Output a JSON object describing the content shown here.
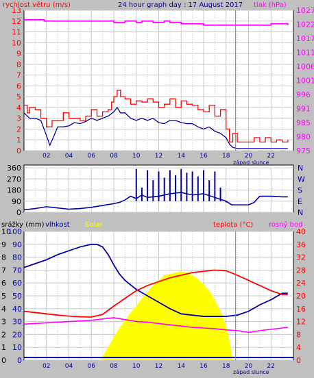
{
  "chart_data": [
    {
      "type": "line",
      "title": "24 hour graph day : 17 August 2017",
      "left_axis_label": "rychlost větru (m/s)",
      "right_axis_label": "tlak (hPa)",
      "left_axis_color": "#ff0000",
      "right_axis_color": "#ff00ff",
      "y_left_ticks": [
        "0",
        "1",
        "2",
        "3",
        "4",
        "5",
        "6",
        "7",
        "8",
        "9",
        "10",
        "11",
        "12",
        "13"
      ],
      "y_left_range": [
        0,
        13
      ],
      "y_right_ticks": [
        "975",
        "980",
        "985",
        "991",
        "996",
        "1001",
        "1006",
        "1011",
        "1017",
        "1022",
        "1027"
      ],
      "y_right_range": [
        975,
        1027
      ],
      "x_ticks": [
        "02",
        "04",
        "06",
        "08",
        "10",
        "12",
        "14",
        "16",
        "18",
        "20",
        "22"
      ],
      "x_range": [
        0,
        24
      ],
      "sunset_label": "západ slunce",
      "sunset_hour": 18.85,
      "grid": true,
      "series": [
        {
          "name": "gust",
          "color": "#ff0000",
          "x": [
            0,
            0.3,
            0.5,
            1,
            1.5,
            2,
            2.5,
            3,
            3.5,
            4,
            4.5,
            5,
            5.5,
            6,
            6.5,
            7,
            7.5,
            7.8,
            8,
            8.3,
            8.6,
            9,
            9.5,
            10,
            10.5,
            11,
            11.5,
            12,
            12.5,
            13,
            13.5,
            14,
            14.5,
            15,
            15.5,
            16,
            16.5,
            17,
            17.5,
            18,
            18.3,
            18.6,
            19,
            19.5,
            20,
            20.5,
            21,
            21.5,
            22,
            22.5,
            23,
            23.5
          ],
          "values": [
            4.2,
            3.5,
            4.0,
            3.8,
            3.0,
            2.2,
            2.8,
            2.8,
            3.5,
            3.0,
            3.0,
            2.8,
            3.2,
            3.8,
            3.2,
            3.6,
            3.8,
            4.5,
            5.0,
            5.6,
            5.0,
            4.8,
            4.3,
            4.6,
            4.5,
            4.8,
            4.5,
            4.0,
            4.3,
            4.8,
            4.0,
            4.6,
            4.3,
            4.2,
            3.8,
            3.6,
            4.2,
            3.2,
            3.8,
            2.0,
            0.8,
            1.6,
            0.8,
            0.8,
            0.8,
            1.2,
            0.8,
            1.2,
            0.8,
            1.0,
            0.8,
            1.0
          ]
        },
        {
          "name": "wind",
          "color": "#0000a0",
          "x": [
            0,
            0.5,
            1,
            1.5,
            2,
            2.3,
            2.6,
            3,
            3.5,
            4,
            4.5,
            5,
            5.5,
            6,
            6.5,
            7,
            7.5,
            8,
            8.3,
            8.6,
            9,
            9.5,
            10,
            10.5,
            11,
            11.5,
            12,
            12.5,
            13,
            13.5,
            14,
            14.5,
            15,
            15.5,
            16,
            16.5,
            17,
            17.5,
            18,
            18.3,
            18.6,
            19,
            20,
            21,
            22,
            23,
            23.5
          ],
          "values": [
            3.5,
            3.0,
            3.0,
            2.8,
            1.4,
            0.5,
            1.2,
            2.2,
            2.2,
            2.3,
            2.6,
            2.5,
            2.7,
            3.0,
            2.8,
            3.0,
            3.2,
            3.6,
            4.0,
            3.5,
            3.5,
            3.0,
            2.8,
            3.0,
            2.8,
            3.0,
            2.6,
            2.5,
            2.8,
            2.8,
            2.6,
            2.5,
            2.5,
            2.2,
            2.0,
            2.2,
            1.8,
            1.6,
            1.2,
            0.6,
            0.3,
            0.2,
            0.2,
            0.2,
            0.2,
            0.2,
            0.2
          ]
        },
        {
          "name": "pressure",
          "color": "#ff00ff",
          "x": [
            0,
            1,
            1.8,
            5,
            7,
            8,
            9,
            9.5,
            10,
            10.5,
            11,
            11.5,
            12,
            12.5,
            13,
            13.5,
            14,
            15,
            16,
            18,
            20,
            21,
            22,
            23,
            23.5
          ],
          "values": [
            1023.5,
            1023.5,
            1023,
            1023,
            1023,
            1022.5,
            1023,
            1023,
            1022.5,
            1023,
            1023,
            1022.5,
            1022.5,
            1023,
            1022.5,
            1022.5,
            1022,
            1022,
            1021.5,
            1021.5,
            1021.5,
            1021.5,
            1022,
            1022,
            1021.5
          ]
        }
      ]
    },
    {
      "type": "line",
      "y_right_ticks": [
        "N",
        "W",
        "S",
        "E",
        "N"
      ],
      "y_left_ticks": [
        "0",
        "90",
        "180",
        "270",
        "360"
      ],
      "y_left_range": [
        0,
        360
      ],
      "x_ticks": [
        "02",
        "04",
        "06",
        "08",
        "10",
        "12",
        "14",
        "16",
        "18",
        "20",
        "22"
      ],
      "x_range": [
        0,
        24
      ],
      "grid": true,
      "series": [
        {
          "name": "direction",
          "color": "#0000a0",
          "x": [
            0,
            1,
            2,
            3,
            4,
            5,
            6,
            7,
            8,
            8.5,
            9,
            9.5,
            10,
            10.5,
            11,
            12,
            13,
            14,
            15,
            16,
            17,
            18,
            18.5,
            19,
            20,
            20.5,
            21,
            22,
            23,
            23.5
          ],
          "values": [
            20,
            30,
            45,
            35,
            25,
            30,
            40,
            55,
            70,
            80,
            100,
            130,
            110,
            140,
            120,
            130,
            150,
            160,
            140,
            150,
            120,
            90,
            60,
            60,
            60,
            80,
            130,
            130,
            125,
            125
          ]
        },
        {
          "name": "direction-spikes",
          "color": "#0000a0",
          "x": [
            10,
            10.5,
            11,
            11.5,
            12,
            12.5,
            13,
            13.5,
            14,
            14.5,
            15,
            15.5,
            16,
            16.5,
            17,
            17.5,
            18
          ],
          "values": [
            350,
            200,
            340,
            260,
            330,
            280,
            340,
            300,
            350,
            320,
            330,
            290,
            340,
            260,
            330,
            200,
            80
          ]
        }
      ]
    },
    {
      "type": "line",
      "axis_labels": {
        "rain": "srážky (mm)",
        "humidity": "vlhkost",
        "solar": "Solar",
        "temp": "teplota (°C)",
        "dew": "rosný bod"
      },
      "axis_colors": {
        "rain": "#000000",
        "humidity": "#0000a0",
        "solar": "#ffff00",
        "temp": "#ff0000",
        "dew": "#ff00ff"
      },
      "y_left_rain_ticks": [
        "0",
        "1",
        "2",
        "3",
        "4",
        "5",
        "6",
        "7",
        "8",
        "9",
        "10"
      ],
      "y_left_hum_ticks": [
        "0",
        "10",
        "20",
        "30",
        "40",
        "50",
        "60",
        "70",
        "80",
        "90",
        "100"
      ],
      "y_right_ticks": [
        "0",
        "4",
        "8",
        "12",
        "16",
        "20",
        "24",
        "28",
        "32",
        "36",
        "40"
      ],
      "x_ticks": [
        "02",
        "04",
        "06",
        "08",
        "10",
        "12",
        "14",
        "16",
        "18",
        "20",
        "22"
      ],
      "x_range": [
        0,
        24
      ],
      "sunset_label": "západ slunce",
      "sunset_hour": 18.85,
      "grid": true,
      "series": [
        {
          "name": "humidity",
          "color": "#0000a0",
          "x": [
            0,
            1,
            2,
            3,
            4,
            5,
            6,
            6.5,
            7,
            7.5,
            8,
            8.5,
            9,
            10,
            11,
            12,
            13,
            14,
            15,
            16,
            17,
            18,
            19,
            20,
            21,
            22,
            23,
            23.5
          ],
          "values": [
            72,
            75,
            78,
            82,
            85,
            88,
            90,
            90,
            88,
            82,
            74,
            67,
            62,
            55,
            50,
            45,
            40,
            36,
            35,
            34,
            34,
            34,
            35,
            38,
            43,
            47,
            52,
            52
          ]
        },
        {
          "name": "temperature",
          "color": "#ff0000",
          "x": [
            0,
            1,
            2,
            3,
            4,
            5,
            6,
            7,
            8,
            9,
            10,
            11,
            12,
            13,
            14,
            15,
            16,
            17,
            18,
            19,
            20,
            21,
            22,
            23,
            23.5
          ],
          "values": [
            15.2,
            14.8,
            14.4,
            14.0,
            13.7,
            13.5,
            13.4,
            14.2,
            16.8,
            19.2,
            21.6,
            23.2,
            24.4,
            25.6,
            26.4,
            27.2,
            27.6,
            28.0,
            27.8,
            26.4,
            24.8,
            23.2,
            21.6,
            20.4,
            20.4
          ]
        },
        {
          "name": "dew",
          "color": "#ff00ff",
          "x": [
            0,
            1,
            2,
            3,
            4,
            5,
            6,
            7,
            8,
            9,
            10,
            11,
            12,
            13,
            14,
            15,
            16,
            17,
            18,
            19,
            20,
            21,
            22,
            23,
            23.5
          ],
          "values": [
            11.2,
            11.4,
            11.6,
            11.8,
            12.0,
            12.2,
            12.4,
            12.8,
            13.2,
            12.6,
            12.0,
            11.8,
            11.4,
            11.0,
            10.6,
            10.2,
            10.0,
            9.8,
            9.4,
            9.2,
            8.6,
            9.2,
            9.6,
            10.0,
            10.2
          ]
        },
        {
          "name": "solar",
          "color": "#ffff00",
          "x": [
            0,
            6.8,
            7,
            7.5,
            8,
            8.5,
            9,
            9.5,
            10,
            10.5,
            11,
            11.5,
            12,
            12.5,
            13,
            13.5,
            14,
            14.5,
            15,
            15.5,
            16,
            16.5,
            17,
            17.5,
            18,
            18.3,
            18.6,
            24
          ],
          "values": [
            0,
            0,
            3,
            10,
            18,
            25,
            31,
            37,
            42,
            48,
            53,
            58,
            62,
            66,
            67,
            68,
            69,
            68,
            66,
            63,
            59,
            54,
            47,
            38,
            27,
            15,
            0,
            0
          ]
        },
        {
          "name": "rain",
          "color": "#0000ff",
          "x": [
            0,
            24
          ],
          "values": [
            0,
            0
          ]
        }
      ]
    }
  ]
}
